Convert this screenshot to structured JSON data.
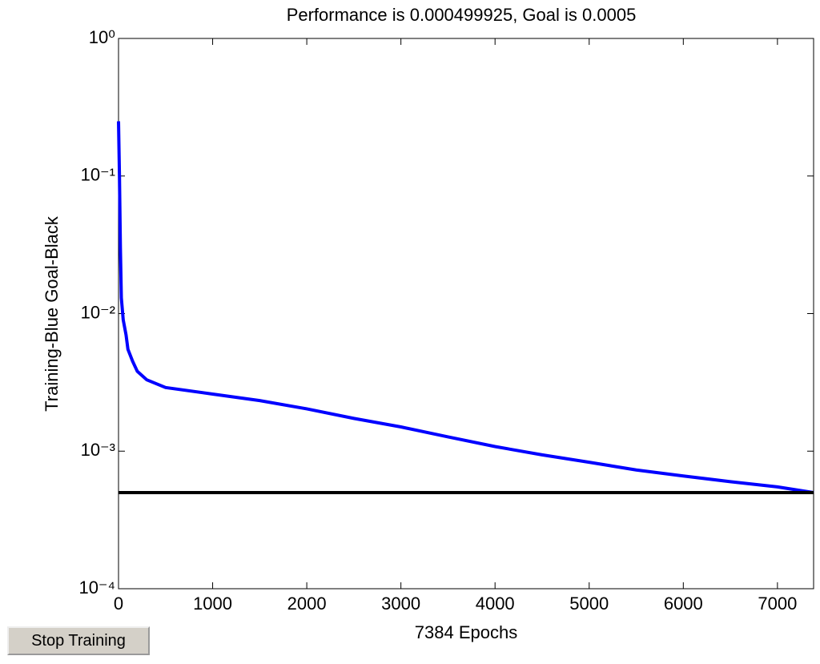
{
  "chart_data": {
    "type": "line",
    "title": "Performance is 0.000499925, Goal is 0.0005",
    "x_label": "7384 Epochs",
    "y_label": "Training-Blue  Goal-Black",
    "xlim": [
      0,
      7384
    ],
    "xticks": [
      0,
      1000,
      2000,
      3000,
      4000,
      5000,
      6000,
      7000
    ],
    "ylim": [
      0.0001,
      1
    ],
    "y_scale": "log",
    "yticks": [
      {
        "value": 1,
        "label": "10⁰"
      },
      {
        "value": 0.1,
        "label": "10⁻¹"
      },
      {
        "value": 0.01,
        "label": "10⁻²"
      },
      {
        "value": 0.001,
        "label": "10⁻³"
      },
      {
        "value": 0.0001,
        "label": "10⁻⁴"
      }
    ],
    "series": [
      {
        "name": "Training",
        "color": "#0000ff",
        "x": [
          0,
          10,
          20,
          30,
          50,
          80,
          100,
          150,
          200,
          300,
          500,
          1000,
          1500,
          2000,
          2500,
          3000,
          3500,
          4000,
          4500,
          5000,
          5500,
          6000,
          6500,
          7000,
          7384
        ],
        "values": [
          0.25,
          0.1,
          0.03,
          0.013,
          0.009,
          0.007,
          0.0055,
          0.0045,
          0.0038,
          0.0033,
          0.0029,
          0.0026,
          0.00233,
          0.00203,
          0.00173,
          0.0015,
          0.00127,
          0.00108,
          0.00094,
          0.00083,
          0.00073,
          0.00066,
          0.0006,
          0.00055,
          0.000499925
        ]
      },
      {
        "name": "Goal",
        "color": "#000000",
        "x": [
          0,
          7384
        ],
        "values": [
          0.0005,
          0.0005
        ]
      }
    ]
  },
  "button": {
    "label": "Stop Training"
  }
}
